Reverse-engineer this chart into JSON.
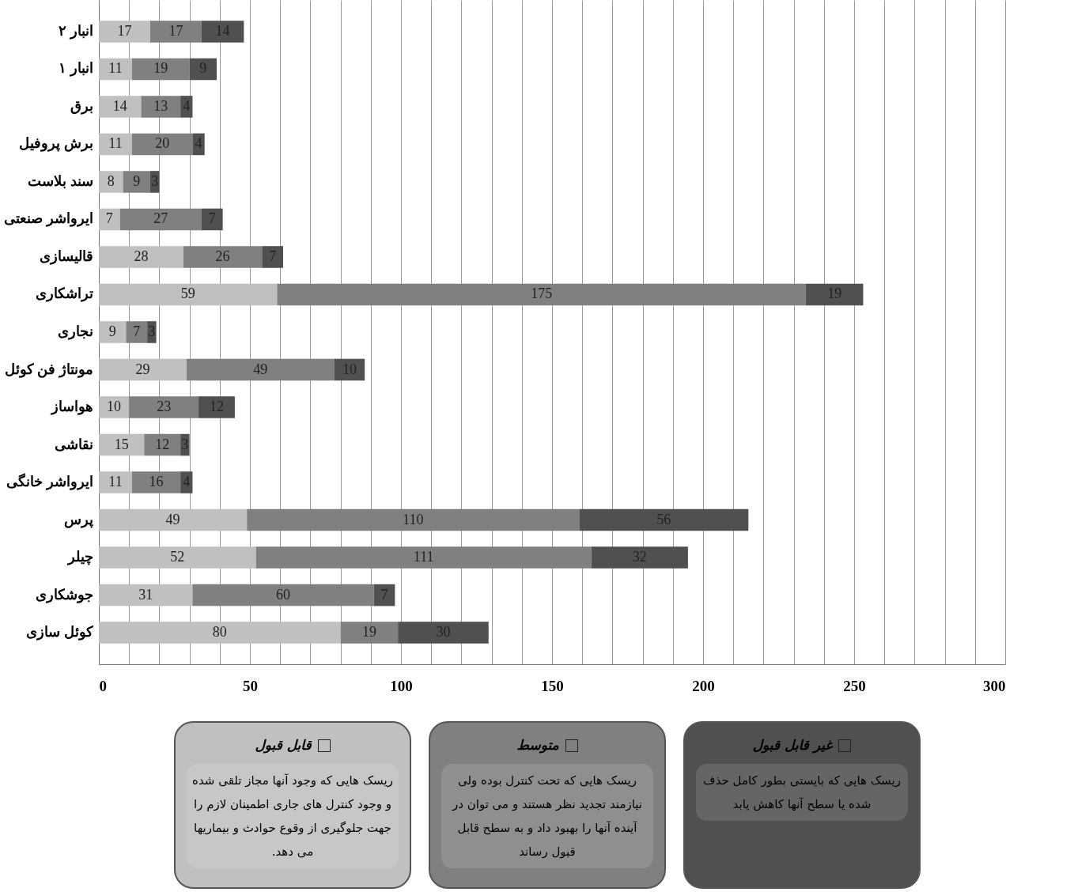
{
  "chart_data": {
    "type": "bar",
    "orientation": "horizontal",
    "stacked": true,
    "data_labels": true,
    "grid": "x",
    "legend": "bottom",
    "categories": [
      "انبار ۲",
      "انبار ۱",
      "برق",
      "برش پروفیل",
      "سند بلاست",
      "ایرواشر صنعتی",
      "قالیسازی",
      "تراشکاری",
      "نجاری",
      "مونتاژ فن کوئل",
      "هواساز",
      "نقاشی",
      "ایرواشر خانگی",
      "پرس",
      "چیلر",
      "جوشکاری",
      "کوئل سازی"
    ],
    "series": [
      {
        "name": "قابل قبول",
        "color": "#c0c0c0",
        "values": [
          17,
          11,
          14,
          11,
          8,
          7,
          28,
          59,
          9,
          29,
          10,
          15,
          11,
          49,
          52,
          31,
          80
        ]
      },
      {
        "name": "متوسط",
        "color": "#808080",
        "values": [
          17,
          19,
          13,
          20,
          9,
          27,
          26,
          175,
          7,
          49,
          23,
          12,
          16,
          110,
          111,
          60,
          19
        ]
      },
      {
        "name": "غیر قابل قبول",
        "color": "#505050",
        "values": [
          14,
          9,
          4,
          4,
          3,
          7,
          7,
          19,
          3,
          10,
          12,
          3,
          4,
          56,
          32,
          7,
          30
        ]
      }
    ],
    "xlim": [
      0,
      300
    ],
    "xticks": [
      0,
      {
        "value": 10,
        "label": null
      },
      {
        "value": 20,
        "label": null
      },
      {
        "value": 30,
        "label": null
      },
      {
        "value": 40,
        "label": null
      },
      50,
      {
        "value": 60,
        "label": null
      },
      {
        "value": 70,
        "label": null
      },
      {
        "value": 80,
        "label": null
      },
      {
        "value": 90,
        "label": null
      },
      100,
      {
        "value": 110,
        "label": null
      },
      {
        "value": 120,
        "label": null
      },
      {
        "value": 130,
        "label": null
      },
      {
        "value": 140,
        "label": null
      },
      150,
      {
        "value": 160,
        "label": null
      },
      {
        "value": 170,
        "label": null
      },
      {
        "value": 180,
        "label": null
      },
      {
        "value": 190,
        "label": null
      },
      200,
      {
        "value": 210,
        "label": null
      },
      {
        "value": 220,
        "label": null
      },
      {
        "value": 230,
        "label": null
      },
      {
        "value": 240,
        "label": null
      },
      250,
      {
        "value": 260,
        "label": null
      },
      {
        "value": 270,
        "label": null
      },
      {
        "value": 280,
        "label": null
      },
      {
        "value": 290,
        "label": null
      },
      300
    ],
    "annotations": [
      "ریسک هایی که وجود آنها مجاز تلقی شده و وجود کنترل های جاری اطمینان لازم را جهت جلوگیری از وقوع حوادث و بیماریها می دهد.",
      "ریسک هایی که تحت کنترل بوده ولی نیازمند تجدید نظر هستند و می توان در آینده آنها را بهبود داد و به سطح قابل قبول رساند",
      "ریسک هایی که بایستی بطور کامل حذف شده یا سطح آنها کاهش یابد"
    ]
  }
}
